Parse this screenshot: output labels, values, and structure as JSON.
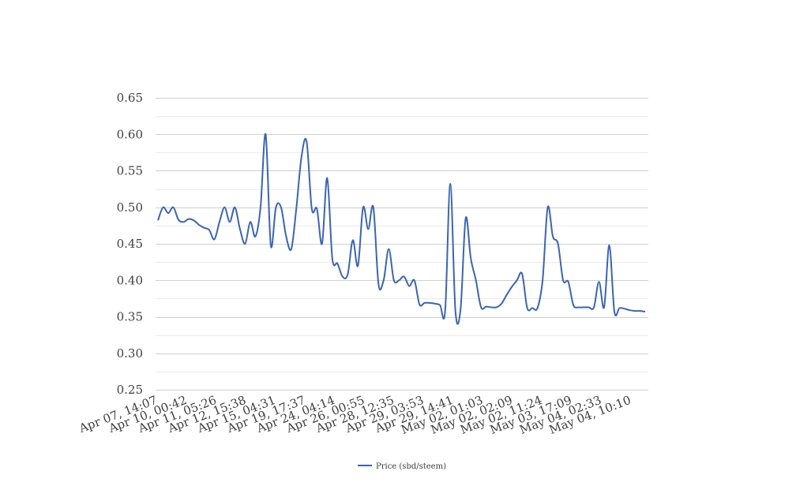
{
  "chart_data": {
    "type": "line",
    "title": "",
    "xlabel": "",
    "ylabel": "",
    "ylim": [
      0.25,
      0.65
    ],
    "yticks": [
      "0.25",
      "0.30",
      "0.35",
      "0.40",
      "0.45",
      "0.50",
      "0.55",
      "0.60",
      "0.65"
    ],
    "grid": true,
    "legend_position": "bottom-center",
    "line_color": "#3a64b4",
    "x_tick_labels": [
      "Apr 07, 14:07",
      "Apr 10, 00:42",
      "Apr 11, 05:26",
      "Apr 12, 15:38",
      "Apr 15, 04:31",
      "Apr 19, 17:37",
      "Apr 24, 04:14",
      "Apr 26, 00:55",
      "Apr 28, 12:35",
      "Apr 29, 03:53",
      "Apr 29, 14:41",
      "May 02, 01:03",
      "May 02, 02:09",
      "May 02, 11:24",
      "May 03, 17:09",
      "May 04, 02:33",
      "May 04, 10:10"
    ],
    "series": [
      {
        "name": "Price (sbd/steem)",
        "values": [
          0.482,
          0.5,
          0.492,
          0.5,
          0.483,
          0.48,
          0.484,
          0.482,
          0.476,
          0.472,
          0.469,
          0.456,
          0.48,
          0.5,
          0.48,
          0.5,
          0.47,
          0.45,
          0.48,
          0.46,
          0.5,
          0.6,
          0.448,
          0.5,
          0.5,
          0.46,
          0.443,
          0.5,
          0.57,
          0.59,
          0.498,
          0.498,
          0.45,
          0.54,
          0.43,
          0.423,
          0.405,
          0.408,
          0.455,
          0.42,
          0.5,
          0.47,
          0.5,
          0.395,
          0.4,
          0.443,
          0.4,
          0.4,
          0.405,
          0.392,
          0.4,
          0.367,
          0.369,
          0.369,
          0.368,
          0.366,
          0.358,
          0.532,
          0.358,
          0.36,
          0.485,
          0.43,
          0.4,
          0.363,
          0.364,
          0.363,
          0.363,
          0.368,
          0.38,
          0.391,
          0.4,
          0.409,
          0.362,
          0.362,
          0.362,
          0.4,
          0.5,
          0.46,
          0.45,
          0.4,
          0.398,
          0.366,
          0.363,
          0.363,
          0.363,
          0.363,
          0.398,
          0.363,
          0.448,
          0.357,
          0.362,
          0.361,
          0.359,
          0.358,
          0.358,
          0.357
        ]
      }
    ]
  }
}
